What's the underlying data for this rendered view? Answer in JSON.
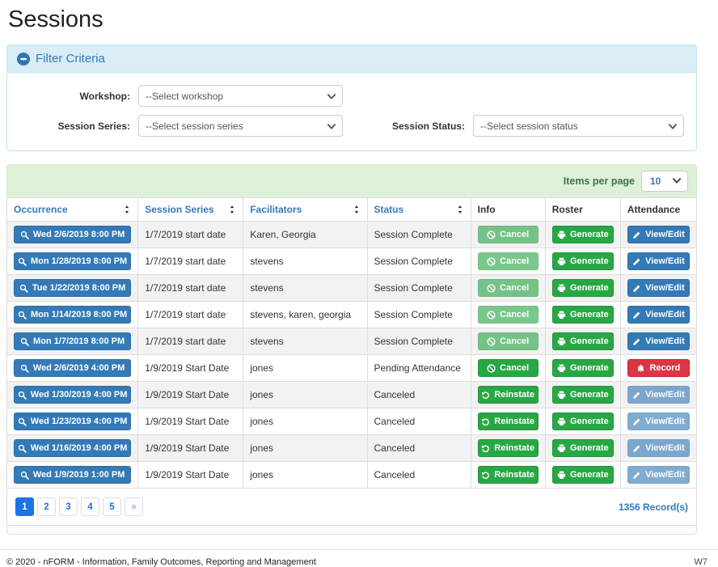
{
  "page": {
    "title": "Sessions"
  },
  "filter": {
    "header": "Filter Criteria",
    "collapse_icon": "minus-circle-icon",
    "fields": [
      {
        "label": "Workshop:",
        "value": "--Select workshop"
      },
      {
        "label": "Session Series:",
        "value": "--Select session series"
      },
      {
        "label": "Session Status:",
        "value": "--Select session status"
      }
    ]
  },
  "table": {
    "items_per_page_label": "Items per page",
    "items_per_page_value": "10",
    "columns": [
      {
        "label": "Occurrence",
        "sortable": true
      },
      {
        "label": "Session Series",
        "sortable": true
      },
      {
        "label": "Facilitators",
        "sortable": true
      },
      {
        "label": "Status",
        "sortable": true
      },
      {
        "label": "Info",
        "sortable": false
      },
      {
        "label": "Roster",
        "sortable": false
      },
      {
        "label": "Attendance",
        "sortable": false
      }
    ],
    "rows": [
      {
        "occurrence": "Wed 2/6/2019 8:00 PM",
        "series": "1/7/2019 start date",
        "facilitators": "Karen, Georgia",
        "status": "Session Complete",
        "info": {
          "label": "Cancel",
          "icon": "ban",
          "variant": "green-disabled"
        },
        "roster": {
          "label": "Generate",
          "icon": "printer",
          "variant": "green"
        },
        "attendance": {
          "label": "View/Edit",
          "icon": "pencil",
          "variant": "blue"
        }
      },
      {
        "occurrence": "Mon 1/28/2019 8:00 PM",
        "series": "1/7/2019 start date",
        "facilitators": "stevens",
        "status": "Session Complete",
        "info": {
          "label": "Cancel",
          "icon": "ban",
          "variant": "green-disabled"
        },
        "roster": {
          "label": "Generate",
          "icon": "printer",
          "variant": "green"
        },
        "attendance": {
          "label": "View/Edit",
          "icon": "pencil",
          "variant": "blue"
        }
      },
      {
        "occurrence": "Tue 1/22/2019 8:00 PM",
        "series": "1/7/2019 start date",
        "facilitators": "stevens",
        "status": "Session Complete",
        "info": {
          "label": "Cancel",
          "icon": "ban",
          "variant": "green-disabled"
        },
        "roster": {
          "label": "Generate",
          "icon": "printer",
          "variant": "green"
        },
        "attendance": {
          "label": "View/Edit",
          "icon": "pencil",
          "variant": "blue"
        }
      },
      {
        "occurrence": "Mon 1/14/2019 8:00 PM",
        "series": "1/7/2019 start date",
        "facilitators": "stevens, karen, georgia",
        "status": "Session Complete",
        "info": {
          "label": "Cancel",
          "icon": "ban",
          "variant": "green-disabled"
        },
        "roster": {
          "label": "Generate",
          "icon": "printer",
          "variant": "green"
        },
        "attendance": {
          "label": "View/Edit",
          "icon": "pencil",
          "variant": "blue"
        }
      },
      {
        "occurrence": "Mon 1/7/2019 8:00 PM",
        "series": "1/7/2019 start date",
        "facilitators": "stevens",
        "status": "Session Complete",
        "info": {
          "label": "Cancel",
          "icon": "ban",
          "variant": "green-disabled"
        },
        "roster": {
          "label": "Generate",
          "icon": "printer",
          "variant": "green"
        },
        "attendance": {
          "label": "View/Edit",
          "icon": "pencil",
          "variant": "blue"
        }
      },
      {
        "occurrence": "Wed 2/6/2019 4:00 PM",
        "series": "1/9/2019 Start Date",
        "facilitators": "jones",
        "status": "Pending Attendance",
        "info": {
          "label": "Cancel",
          "icon": "ban",
          "variant": "green"
        },
        "roster": {
          "label": "Generate",
          "icon": "printer",
          "variant": "green"
        },
        "attendance": {
          "label": "Record",
          "icon": "bell",
          "variant": "red"
        }
      },
      {
        "occurrence": "Wed 1/30/2019 4:00 PM",
        "series": "1/9/2019 Start Date",
        "facilitators": "jones",
        "status": "Canceled",
        "info": {
          "label": "Reinstate",
          "icon": "undo",
          "variant": "green"
        },
        "roster": {
          "label": "Generate",
          "icon": "printer",
          "variant": "green"
        },
        "attendance": {
          "label": "View/Edit",
          "icon": "pencil",
          "variant": "blue-disabled"
        }
      },
      {
        "occurrence": "Wed 1/23/2019 4:00 PM",
        "series": "1/9/2019 Start Date",
        "facilitators": "jones",
        "status": "Canceled",
        "info": {
          "label": "Reinstate",
          "icon": "undo",
          "variant": "green"
        },
        "roster": {
          "label": "Generate",
          "icon": "printer",
          "variant": "green"
        },
        "attendance": {
          "label": "View/Edit",
          "icon": "pencil",
          "variant": "blue-disabled"
        }
      },
      {
        "occurrence": "Wed 1/16/2019 4:00 PM",
        "series": "1/9/2019 Start Date",
        "facilitators": "jones",
        "status": "Canceled",
        "info": {
          "label": "Reinstate",
          "icon": "undo",
          "variant": "green"
        },
        "roster": {
          "label": "Generate",
          "icon": "printer",
          "variant": "green"
        },
        "attendance": {
          "label": "View/Edit",
          "icon": "pencil",
          "variant": "blue-disabled"
        }
      },
      {
        "occurrence": "Wed 1/9/2019 1:00 PM",
        "series": "1/9/2019 Start Date",
        "facilitators": "jones",
        "status": "Canceled",
        "info": {
          "label": "Reinstate",
          "icon": "undo",
          "variant": "green"
        },
        "roster": {
          "label": "Generate",
          "icon": "printer",
          "variant": "green"
        },
        "attendance": {
          "label": "View/Edit",
          "icon": "pencil",
          "variant": "blue-disabled"
        }
      }
    ],
    "record_count": "1356 Record(s)"
  },
  "pagination": {
    "pages": [
      "1",
      "2",
      "3",
      "4",
      "5",
      "»"
    ],
    "active": "1"
  },
  "footer": {
    "copyright": "© 2020 - nFORM - Information, Family Outcomes, Reporting and Management",
    "version": "W7"
  },
  "colors": {
    "primary_blue": "#337ab7",
    "success_green": "#28a745",
    "danger_red": "#dc3545",
    "active_page_blue": "#1a73e8",
    "filter_header_bg": "#d9edf7",
    "filter_border": "#bce8f1",
    "items_bar_bg": "#dff0d8",
    "row_stripe": "#f2f2f2"
  }
}
